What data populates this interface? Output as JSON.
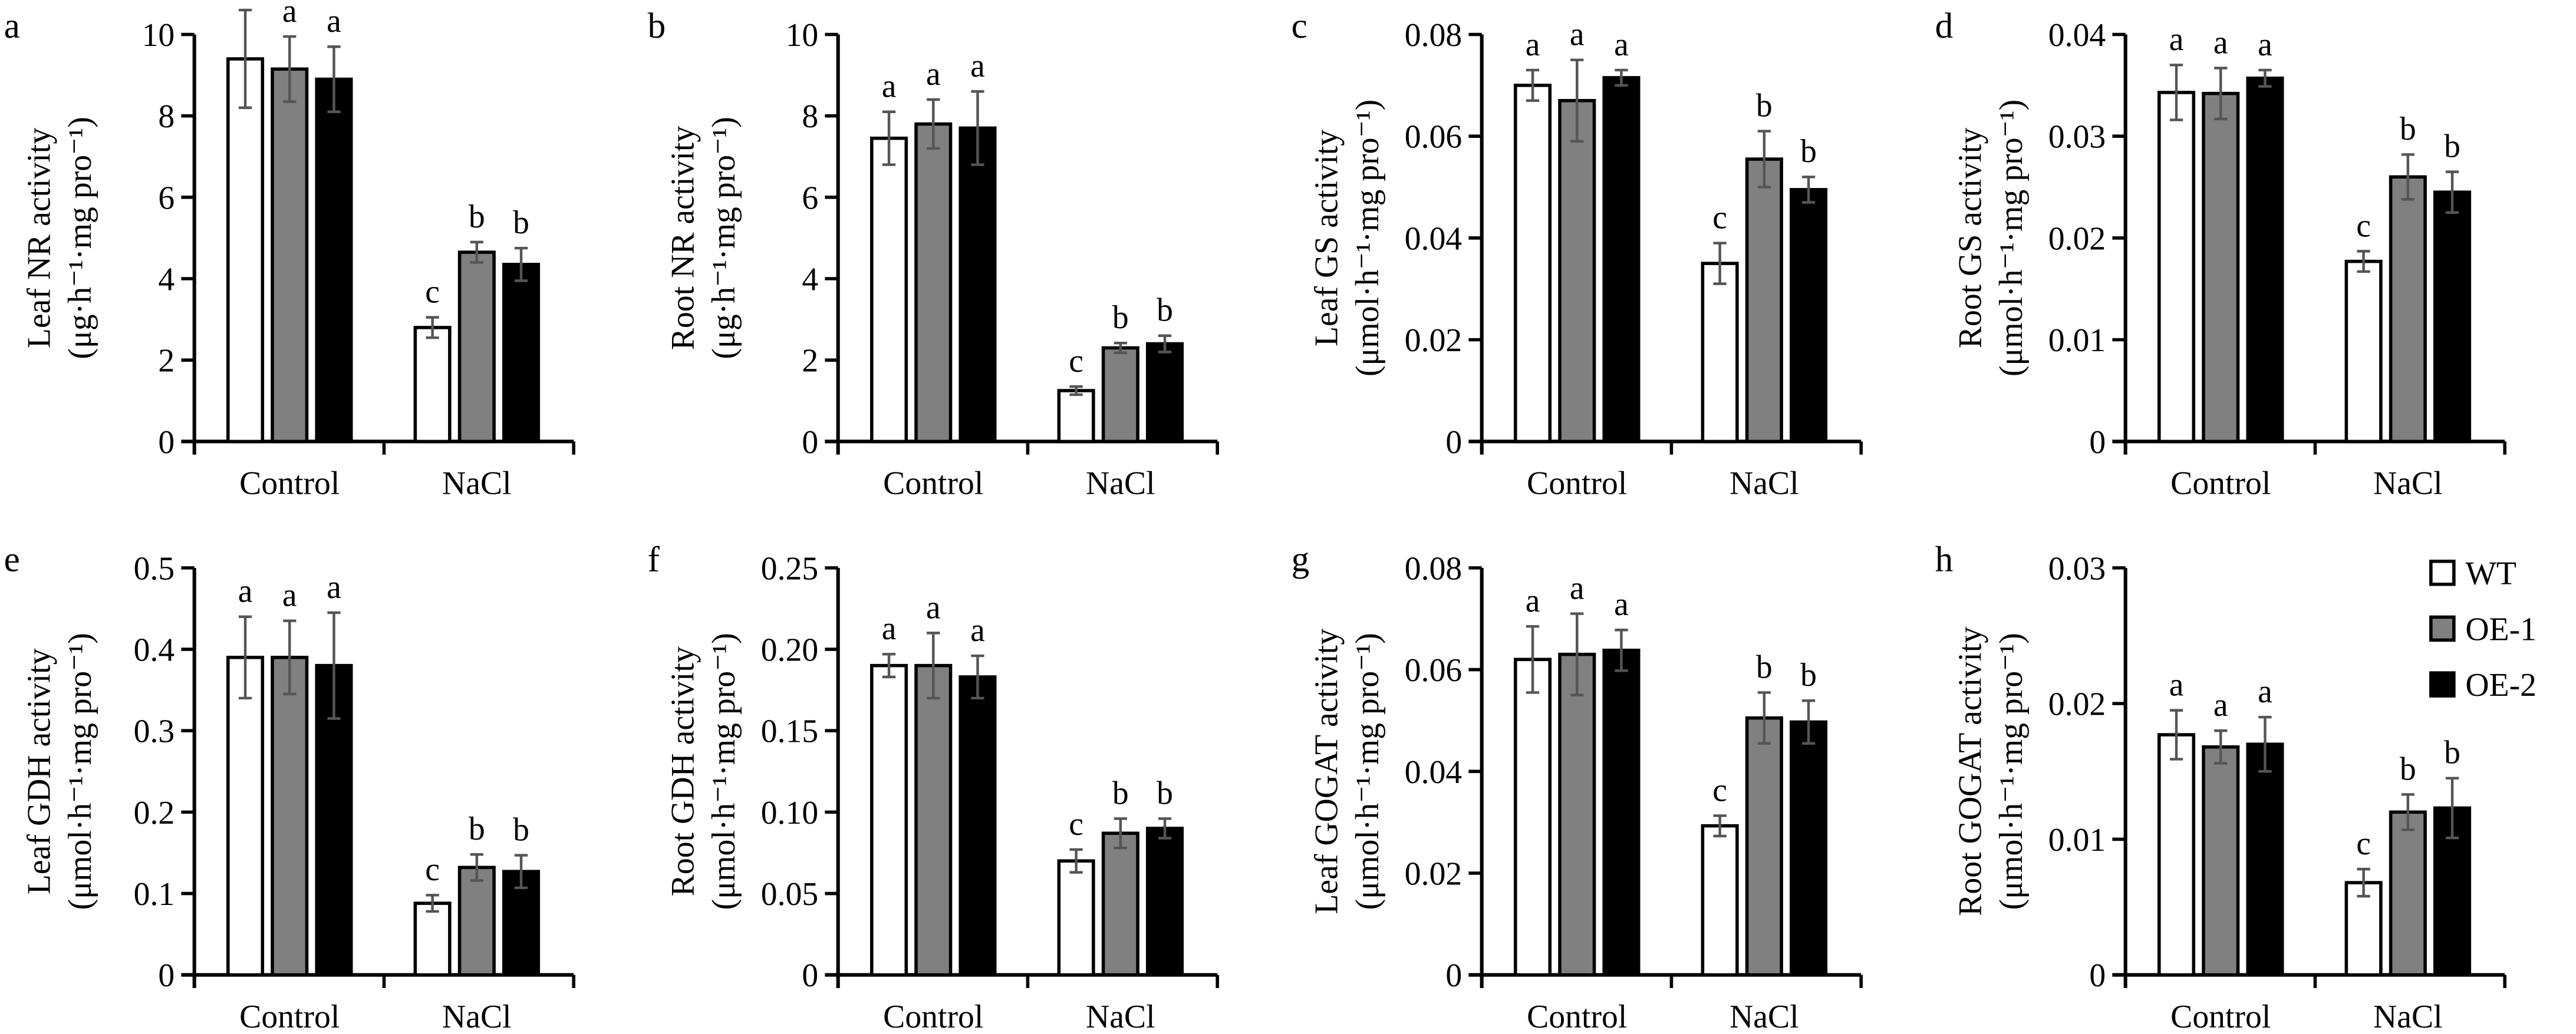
{
  "chart_data": [
    {
      "type": "bar",
      "panel": "a",
      "ylabel": "Leaf NR activity",
      "yunit": "(μg·h⁻¹·mg pro⁻¹)",
      "ylim": [
        0,
        10
      ],
      "ticks": [
        "0",
        "2",
        "4",
        "6",
        "8",
        "10"
      ],
      "categories": [
        "Control",
        "NaCl"
      ],
      "series": [
        {
          "name": "WT",
          "values": [
            9.4,
            2.8
          ],
          "errors": [
            1.2,
            0.25
          ],
          "letters": [
            "a",
            "c"
          ]
        },
        {
          "name": "OE-1",
          "values": [
            9.15,
            4.65
          ],
          "errors": [
            0.8,
            0.25
          ],
          "letters": [
            "a",
            "b"
          ]
        },
        {
          "name": "OE-2",
          "values": [
            8.9,
            4.35
          ],
          "errors": [
            0.8,
            0.4
          ],
          "letters": [
            "a",
            "b"
          ]
        }
      ]
    },
    {
      "type": "bar",
      "panel": "b",
      "ylabel": "Root NR activity",
      "yunit": "(μg·h⁻¹·mg pro⁻¹)",
      "ylim": [
        0,
        10
      ],
      "ticks": [
        "0",
        "2",
        "4",
        "6",
        "8",
        "10"
      ],
      "categories": [
        "Control",
        "NaCl"
      ],
      "series": [
        {
          "name": "WT",
          "values": [
            7.45,
            1.25
          ],
          "errors": [
            0.65,
            0.1
          ],
          "letters": [
            "a",
            "c"
          ]
        },
        {
          "name": "OE-1",
          "values": [
            7.8,
            2.3
          ],
          "errors": [
            0.6,
            0.12
          ],
          "letters": [
            "a",
            "b"
          ]
        },
        {
          "name": "OE-2",
          "values": [
            7.7,
            2.4
          ],
          "errors": [
            0.9,
            0.2
          ],
          "letters": [
            "a",
            "b"
          ]
        }
      ]
    },
    {
      "type": "bar",
      "panel": "c",
      "ylabel": "Leaf GS activity",
      "yunit": "(μmol·h⁻¹·mg pro⁻¹)",
      "ylim": [
        0,
        0.08
      ],
      "ticks": [
        "0",
        "0.02",
        "0.04",
        "0.06",
        "0.08"
      ],
      "categories": [
        "Control",
        "NaCl"
      ],
      "series": [
        {
          "name": "WT",
          "values": [
            0.07,
            0.035
          ],
          "errors": [
            0.003,
            0.004
          ],
          "letters": [
            "a",
            "c"
          ]
        },
        {
          "name": "OE-1",
          "values": [
            0.067,
            0.0555
          ],
          "errors": [
            0.008,
            0.0055
          ],
          "letters": [
            "a",
            "b"
          ]
        },
        {
          "name": "OE-2",
          "values": [
            0.0715,
            0.0495
          ],
          "errors": [
            0.0015,
            0.0025
          ],
          "letters": [
            "a",
            "b"
          ]
        }
      ]
    },
    {
      "type": "bar",
      "panel": "d",
      "ylabel": "Root GS activity",
      "yunit": "(μmol·h⁻¹·mg pro⁻¹)",
      "ylim": [
        0,
        0.04
      ],
      "ticks": [
        "0",
        "0.01",
        "0.02",
        "0.03",
        "0.04"
      ],
      "categories": [
        "Control",
        "NaCl"
      ],
      "series": [
        {
          "name": "WT",
          "values": [
            0.0343,
            0.0177
          ],
          "errors": [
            0.0027,
            0.001
          ],
          "letters": [
            "a",
            "c"
          ]
        },
        {
          "name": "OE-1",
          "values": [
            0.0342,
            0.026
          ],
          "errors": [
            0.0025,
            0.0022
          ],
          "letters": [
            "a",
            "b"
          ]
        },
        {
          "name": "OE-2",
          "values": [
            0.0357,
            0.0245
          ],
          "errors": [
            0.0008,
            0.002
          ],
          "letters": [
            "a",
            "b"
          ]
        }
      ]
    },
    {
      "type": "bar",
      "panel": "e",
      "ylabel": "Leaf GDH activity",
      "yunit": "(μmol·h⁻¹·mg pro⁻¹)",
      "ylim": [
        0,
        0.5
      ],
      "ticks": [
        "0",
        "0.1",
        "0.2",
        "0.3",
        "0.4",
        "0.5"
      ],
      "categories": [
        "Control",
        "NaCl"
      ],
      "series": [
        {
          "name": "WT",
          "values": [
            0.39,
            0.088
          ],
          "errors": [
            0.05,
            0.01
          ],
          "letters": [
            "a",
            "c"
          ]
        },
        {
          "name": "OE-1",
          "values": [
            0.39,
            0.132
          ],
          "errors": [
            0.045,
            0.016
          ],
          "letters": [
            "a",
            "b"
          ]
        },
        {
          "name": "OE-2",
          "values": [
            0.38,
            0.127
          ],
          "errors": [
            0.065,
            0.02
          ],
          "letters": [
            "a",
            "b"
          ]
        }
      ]
    },
    {
      "type": "bar",
      "panel": "f",
      "ylabel": "Root GDH activity",
      "yunit": "(μmol·h⁻¹·mg pro⁻¹)",
      "ylim": [
        0,
        0.25
      ],
      "ticks": [
        "0",
        "0.05",
        "0.10",
        "0.15",
        "0.20",
        "0.25"
      ],
      "categories": [
        "Control",
        "NaCl"
      ],
      "series": [
        {
          "name": "WT",
          "values": [
            0.19,
            0.07
          ],
          "errors": [
            0.007,
            0.007
          ],
          "letters": [
            "a",
            "c"
          ]
        },
        {
          "name": "OE-1",
          "values": [
            0.19,
            0.087
          ],
          "errors": [
            0.02,
            0.009
          ],
          "letters": [
            "a",
            "b"
          ]
        },
        {
          "name": "OE-2",
          "values": [
            0.183,
            0.09
          ],
          "errors": [
            0.013,
            0.006
          ],
          "letters": [
            "a",
            "b"
          ]
        }
      ]
    },
    {
      "type": "bar",
      "panel": "g",
      "ylabel": "Leaf GOGAT activity",
      "yunit": "(μmol·h⁻¹·mg pro⁻¹)",
      "ylim": [
        0,
        0.08
      ],
      "ticks": [
        "0",
        "0.02",
        "0.04",
        "0.06",
        "0.08"
      ],
      "categories": [
        "Control",
        "NaCl"
      ],
      "series": [
        {
          "name": "WT",
          "values": [
            0.062,
            0.0293
          ],
          "errors": [
            0.0065,
            0.002
          ],
          "letters": [
            "a",
            "c"
          ]
        },
        {
          "name": "OE-1",
          "values": [
            0.063,
            0.0505
          ],
          "errors": [
            0.008,
            0.005
          ],
          "letters": [
            "a",
            "b"
          ]
        },
        {
          "name": "OE-2",
          "values": [
            0.0638,
            0.0497
          ],
          "errors": [
            0.004,
            0.0042
          ],
          "letters": [
            "a",
            "b"
          ]
        }
      ]
    },
    {
      "type": "bar",
      "panel": "h",
      "ylabel": "Root GOGAT activity",
      "yunit": "(μmol·h⁻¹·mg pro⁻¹)",
      "ylim": [
        0,
        0.03
      ],
      "ticks": [
        "0",
        "0.01",
        "0.02",
        "0.03"
      ],
      "categories": [
        "Control",
        "NaCl"
      ],
      "series": [
        {
          "name": "WT",
          "values": [
            0.0177,
            0.0068
          ],
          "errors": [
            0.0018,
            0.001
          ],
          "letters": [
            "a",
            "c"
          ]
        },
        {
          "name": "OE-1",
          "values": [
            0.0168,
            0.012
          ],
          "errors": [
            0.0012,
            0.0013
          ],
          "letters": [
            "a",
            "b"
          ]
        },
        {
          "name": "OE-2",
          "values": [
            0.017,
            0.0123
          ],
          "errors": [
            0.002,
            0.0022
          ],
          "letters": [
            "a",
            "b"
          ]
        }
      ]
    }
  ],
  "legend": {
    "placement": "top-right of panel h",
    "items": [
      "WT",
      "OE-1",
      "OE-2"
    ]
  },
  "colors": {
    "WT": "#ffffff",
    "OE-1": "#808080",
    "OE-2": "#000000",
    "error": "#555555"
  }
}
